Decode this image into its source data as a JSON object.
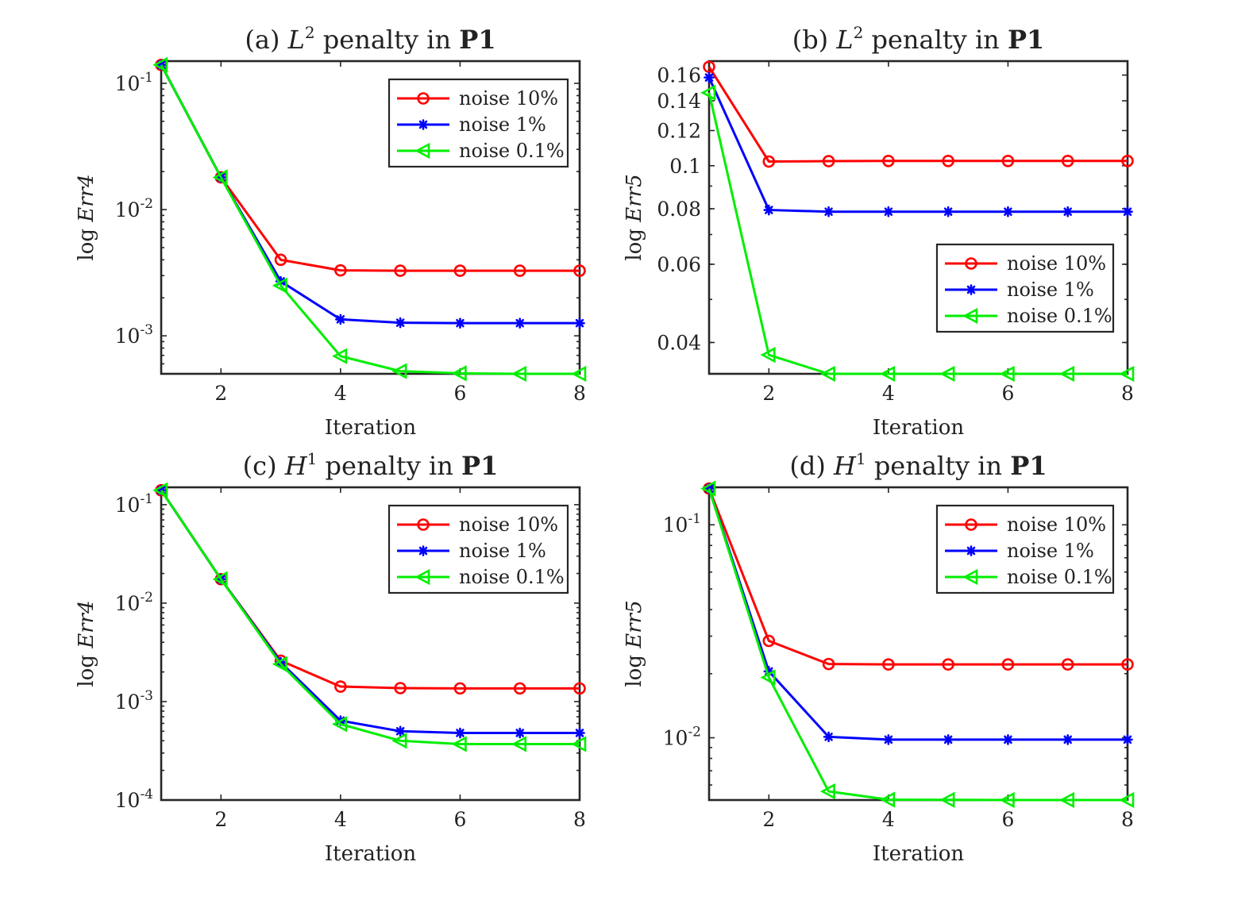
{
  "colors": {
    "noise 10%": "#ff0000",
    "noise 1%": "#0000ff",
    "noise 0.1%": "#00ee00",
    "axes": "#262626"
  },
  "chart_data": [
    {
      "id": "a",
      "type": "line",
      "title_prefix": "(a) ",
      "title_math": "L",
      "title_sup": "2",
      "title_mid": " penalty in ",
      "title_bold": "P1",
      "xlabel": "Iteration",
      "ylabel_prefix": "log ",
      "ylabel_math": "Err4",
      "yscale": "log",
      "xlim": [
        1,
        8
      ],
      "ylim": [
        0.0005,
        0.15
      ],
      "xticks": [
        2,
        4,
        6,
        8
      ],
      "yticks": [
        {
          "value": 0.1,
          "base": "10",
          "exp": "-1"
        },
        {
          "value": 0.01,
          "base": "10",
          "exp": "-2"
        },
        {
          "value": 0.001,
          "base": "10",
          "exp": "-3"
        }
      ],
      "legend_pos": "top-right",
      "x": [
        1,
        2,
        3,
        4,
        5,
        6,
        7,
        8
      ],
      "series": [
        {
          "name": "noise 10%",
          "marker": "circle",
          "values": [
            0.14,
            0.018,
            0.004,
            0.0033,
            0.00328,
            0.00328,
            0.00328,
            0.00328
          ]
        },
        {
          "name": "noise 1%",
          "marker": "asterisk",
          "values": [
            0.14,
            0.018,
            0.0027,
            0.00135,
            0.00127,
            0.00126,
            0.00126,
            0.00126
          ]
        },
        {
          "name": "noise 0.1%",
          "marker": "triangle-left",
          "values": [
            0.14,
            0.018,
            0.0025,
            0.00069,
            0.000525,
            0.000505,
            0.0005,
            0.0005
          ]
        }
      ]
    },
    {
      "id": "b",
      "type": "line",
      "title_prefix": "(b) ",
      "title_math": "L",
      "title_sup": "2",
      "title_mid": " penalty in ",
      "title_bold": "P1",
      "xlabel": "Iteration",
      "ylabel_prefix": "log ",
      "ylabel_math": "Err5",
      "yscale": "log",
      "xlim": [
        1,
        8
      ],
      "ylim": [
        0.034,
        0.172
      ],
      "xticks": [
        2,
        4,
        6,
        8
      ],
      "yticks": [
        {
          "value": 0.16,
          "label": "0.16"
        },
        {
          "value": 0.14,
          "label": "0.14"
        },
        {
          "value": 0.12,
          "label": "0.12"
        },
        {
          "value": 0.1,
          "label": "0.1"
        },
        {
          "value": 0.08,
          "label": "0.08"
        },
        {
          "value": 0.06,
          "label": "0.06"
        },
        {
          "value": 0.04,
          "label": "0.04"
        }
      ],
      "legend_pos": "center-right",
      "x": [
        1,
        2,
        3,
        4,
        5,
        6,
        7,
        8
      ],
      "series": [
        {
          "name": "noise 10%",
          "marker": "circle",
          "values": [
            0.167,
            0.1022,
            0.1024,
            0.1025,
            0.1025,
            0.1025,
            0.1025,
            0.1025
          ]
        },
        {
          "name": "noise 1%",
          "marker": "asterisk",
          "values": [
            0.158,
            0.0795,
            0.0788,
            0.0788,
            0.0788,
            0.0788,
            0.0788,
            0.0788
          ]
        },
        {
          "name": "noise 0.1%",
          "marker": "triangle-left",
          "values": [
            0.146,
            0.0375,
            0.034,
            0.034,
            0.034,
            0.034,
            0.034,
            0.034
          ]
        }
      ]
    },
    {
      "id": "c",
      "type": "line",
      "title_prefix": "(c) ",
      "title_math": "H",
      "title_sup": "1",
      "title_mid": " penalty in ",
      "title_bold": "P1",
      "xlabel": "Iteration",
      "ylabel_prefix": "log ",
      "ylabel_math": "Err4",
      "yscale": "log",
      "xlim": [
        1,
        8
      ],
      "ylim": [
        0.0001,
        0.15
      ],
      "xticks": [
        2,
        4,
        6,
        8
      ],
      "yticks": [
        {
          "value": 0.1,
          "base": "10",
          "exp": "-1"
        },
        {
          "value": 0.01,
          "base": "10",
          "exp": "-2"
        },
        {
          "value": 0.001,
          "base": "10",
          "exp": "-3"
        },
        {
          "value": 0.0001,
          "base": "10",
          "exp": "-4"
        }
      ],
      "legend_pos": "top-right",
      "x": [
        1,
        2,
        3,
        4,
        5,
        6,
        7,
        8
      ],
      "series": [
        {
          "name": "noise 10%",
          "marker": "circle",
          "values": [
            0.14,
            0.0175,
            0.0026,
            0.00142,
            0.00137,
            0.00136,
            0.00136,
            0.00136
          ]
        },
        {
          "name": "noise 1%",
          "marker": "asterisk",
          "values": [
            0.14,
            0.0175,
            0.0025,
            0.00064,
            0.0005,
            0.00048,
            0.00048,
            0.00048
          ]
        },
        {
          "name": "noise 0.1%",
          "marker": "triangle-left",
          "values": [
            0.14,
            0.0175,
            0.0024,
            0.00059,
            0.0004,
            0.00037,
            0.00037,
            0.00037
          ]
        }
      ]
    },
    {
      "id": "d",
      "type": "line",
      "title_prefix": "(d) ",
      "title_math": "H",
      "title_sup": "1",
      "title_mid": " penalty in ",
      "title_bold": "P1",
      "xlabel": "Iteration",
      "ylabel_prefix": "log ",
      "ylabel_math": "Err5",
      "yscale": "log",
      "xlim": [
        1,
        8
      ],
      "ylim": [
        0.0051,
        0.15
      ],
      "xticks": [
        2,
        4,
        6,
        8
      ],
      "yticks": [
        {
          "value": 0.1,
          "base": "10",
          "exp": "-1"
        },
        {
          "value": 0.01,
          "base": "10",
          "exp": "-2"
        }
      ],
      "legend_pos": "top-right",
      "x": [
        1,
        2,
        3,
        4,
        5,
        6,
        7,
        8
      ],
      "series": [
        {
          "name": "noise 10%",
          "marker": "circle",
          "values": [
            0.148,
            0.0285,
            0.0222,
            0.0221,
            0.0221,
            0.0221,
            0.0221,
            0.0221
          ]
        },
        {
          "name": "noise 1%",
          "marker": "asterisk",
          "values": [
            0.148,
            0.0205,
            0.0101,
            0.0098,
            0.0098,
            0.0098,
            0.0098,
            0.0098
          ]
        },
        {
          "name": "noise 0.1%",
          "marker": "triangle-left",
          "values": [
            0.148,
            0.0192,
            0.0056,
            0.00512,
            0.00511,
            0.0051,
            0.0051,
            0.0051
          ]
        }
      ]
    }
  ]
}
